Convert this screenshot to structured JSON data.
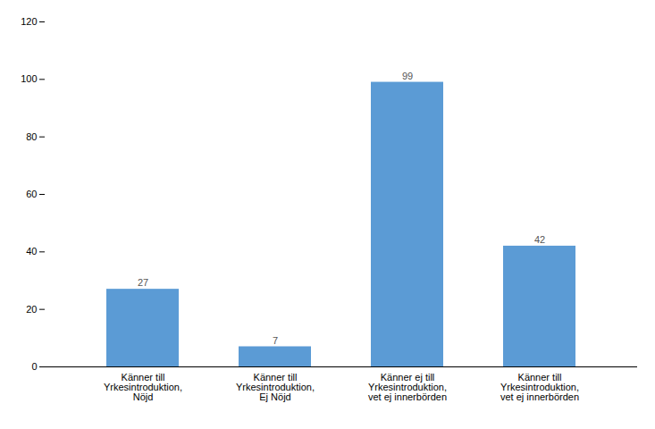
{
  "chart_data": {
    "type": "bar",
    "categories": [
      "Känner till\nYrkesintroduktion,\nNöjd",
      "Känner till\nYrkesintroduktion,\nEj Nöjd",
      "Känner ej till\nYrkesintroduktion,\nvet ej innerbörden",
      "Känner till\nYrkesintroduktion,\nvet ej innerbörden"
    ],
    "values": [
      27,
      7,
      99,
      42
    ],
    "color": "#5B9BD5",
    "ylim": [
      0,
      120
    ],
    "yticks": [
      0,
      20,
      40,
      60,
      80,
      100,
      120
    ],
    "grid": false,
    "data_labels": true
  }
}
